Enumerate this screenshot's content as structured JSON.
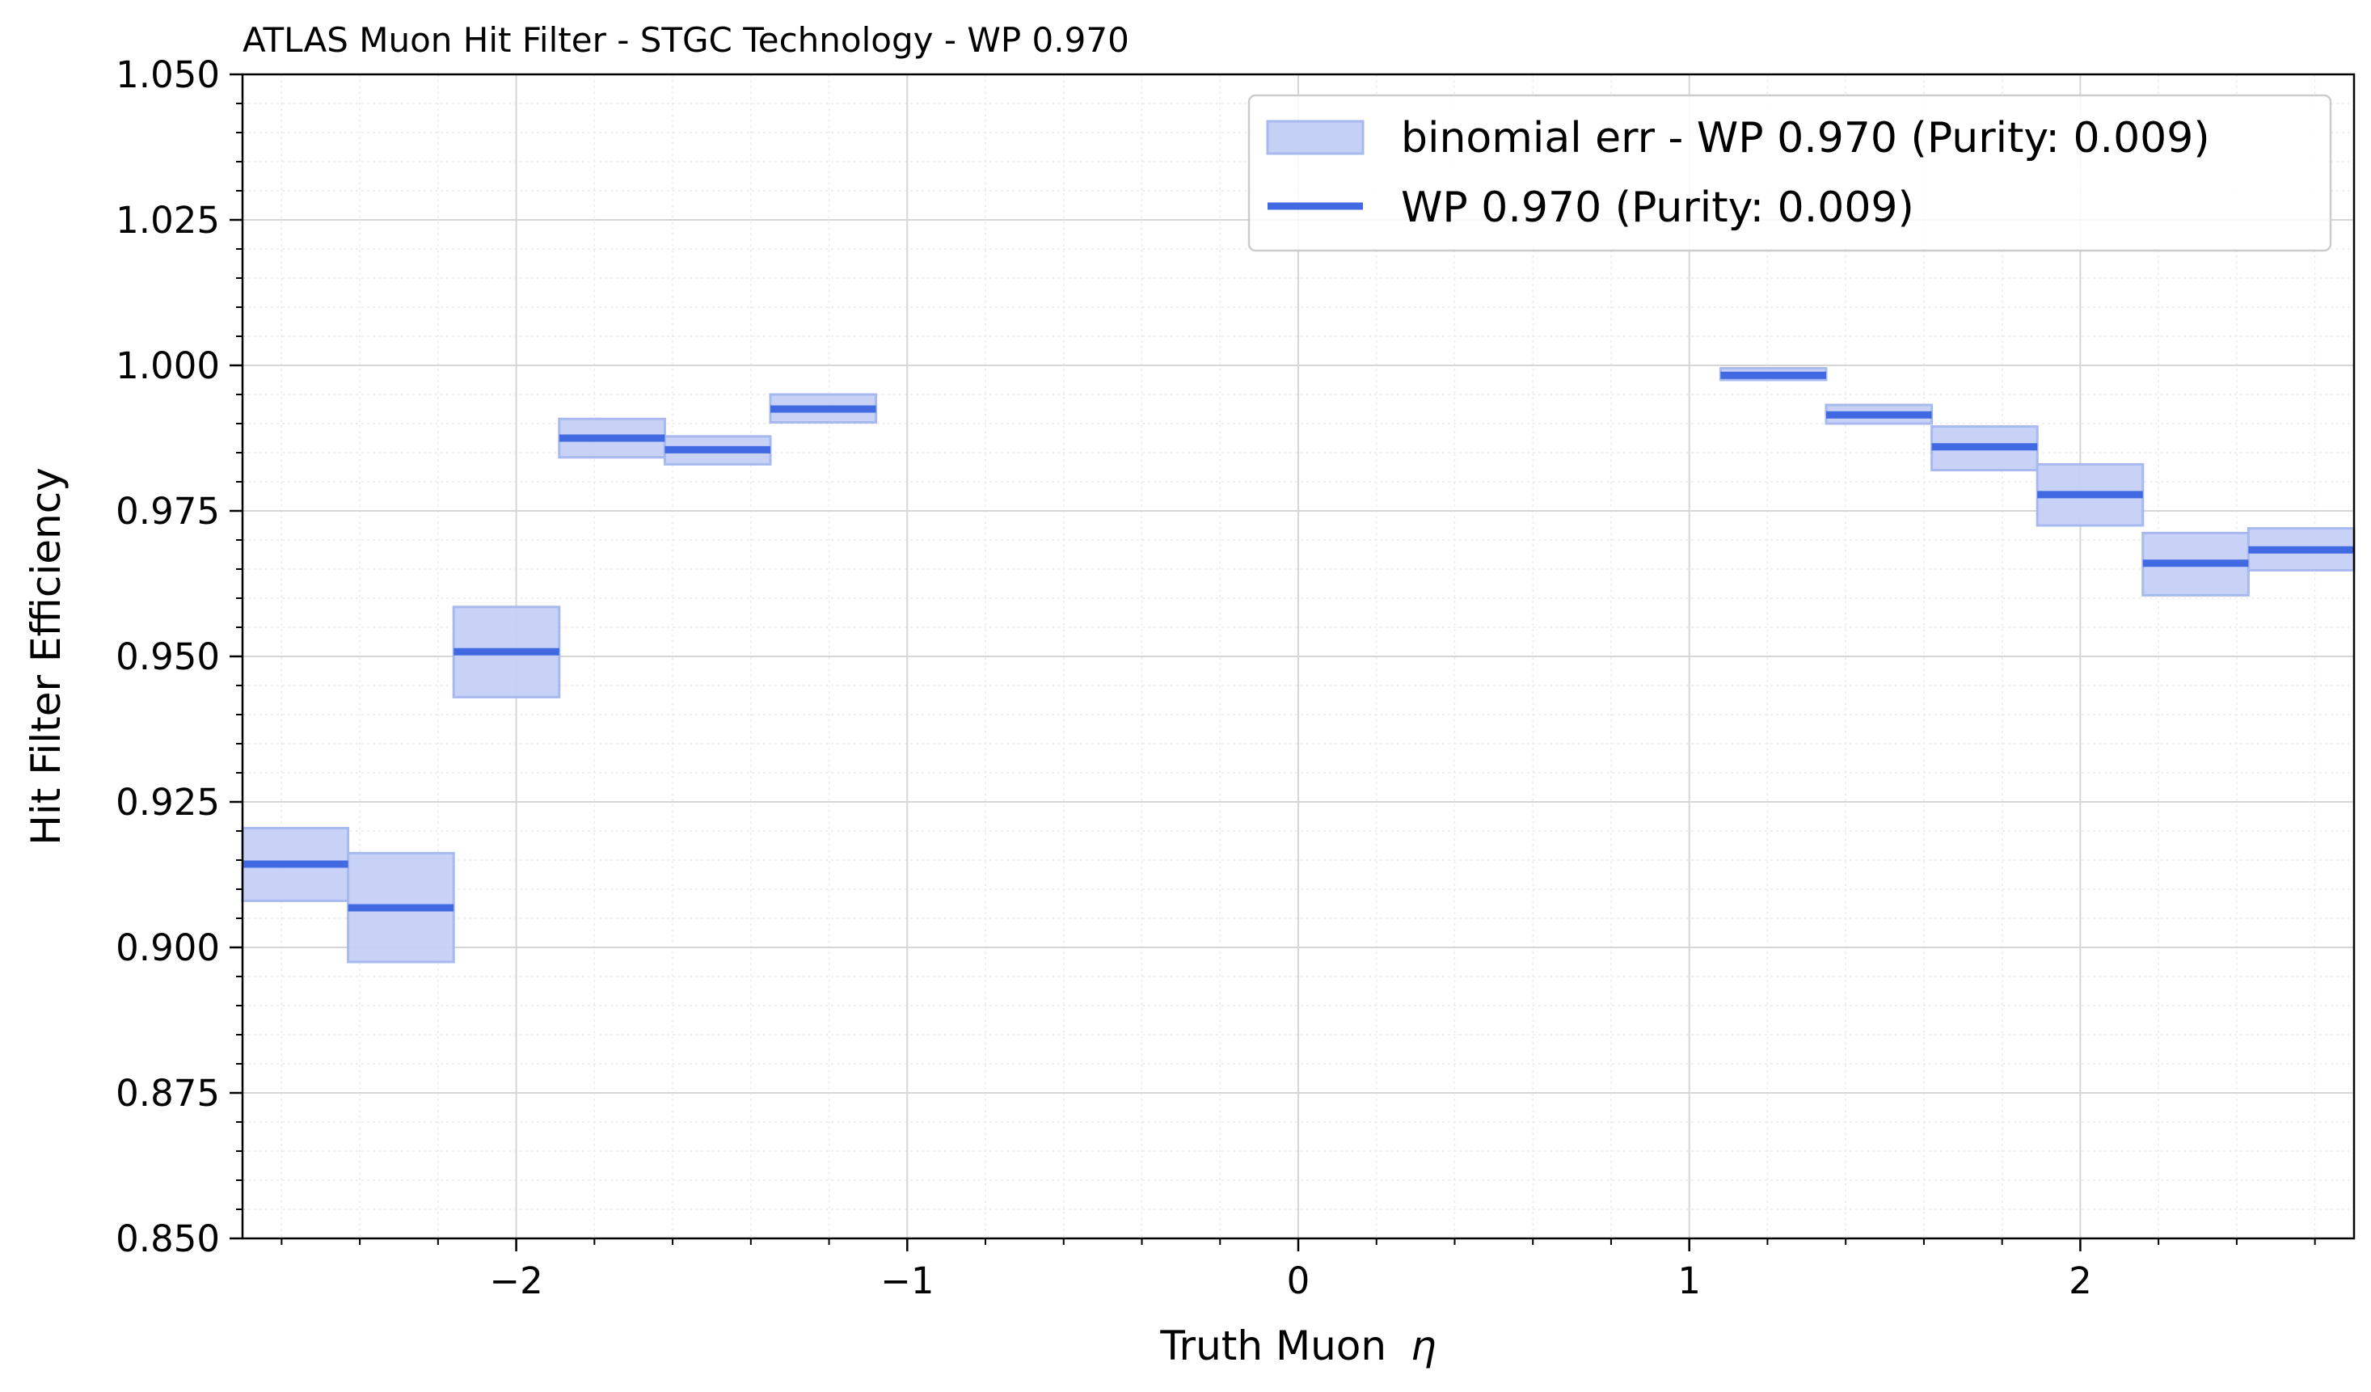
{
  "chart_data": {
    "type": "step-errorbar",
    "title": "ATLAS Muon Hit Filter - STGC Technology - WP 0.970",
    "xlabel": "Truth Muon",
    "xlabel_symbol": "η",
    "ylabel": "Hit Filter Efficiency",
    "xlim": [
      -2.7,
      2.7
    ],
    "ylim": [
      0.85,
      1.05
    ],
    "x_ticks": [
      -2,
      -1,
      0,
      1,
      2
    ],
    "x_tick_labels": [
      "−2",
      "−1",
      "0",
      "1",
      "2"
    ],
    "y_ticks": [
      0.85,
      0.875,
      0.9,
      0.925,
      0.95,
      0.975,
      1.0,
      1.025,
      1.05
    ],
    "y_tick_labels": [
      "0.850",
      "0.875",
      "0.900",
      "0.925",
      "0.950",
      "0.975",
      "1.000",
      "1.025",
      "1.050"
    ],
    "grid": true,
    "minor_grid": true,
    "legend_position": "top-right",
    "legend": [
      {
        "label": "binomial err - WP 0.970 (Purity: 0.009)",
        "kind": "band"
      },
      {
        "label": "WP 0.970 (Purity: 0.009)",
        "kind": "line"
      }
    ],
    "colors": {
      "line": "#4169e1",
      "band_fill": "#c4d0f6",
      "band_edge": "#a7b9ee"
    },
    "bins": [
      {
        "x0": -2.7,
        "x1": -2.43,
        "y": 0.9143,
        "err_low": 0.908,
        "err_high": 0.9205
      },
      {
        "x0": -2.43,
        "x1": -2.16,
        "y": 0.9068,
        "err_low": 0.8975,
        "err_high": 0.9162
      },
      {
        "x0": -2.16,
        "x1": -1.89,
        "y": 0.9508,
        "err_low": 0.943,
        "err_high": 0.9585
      },
      {
        "x0": -1.89,
        "x1": -1.62,
        "y": 0.9875,
        "err_low": 0.9842,
        "err_high": 0.9908
      },
      {
        "x0": -1.62,
        "x1": -1.35,
        "y": 0.9855,
        "err_low": 0.983,
        "err_high": 0.9878
      },
      {
        "x0": -1.35,
        "x1": -1.08,
        "y": 0.9925,
        "err_low": 0.9902,
        "err_high": 0.995
      },
      {
        "x0": 1.08,
        "x1": 1.35,
        "y": 0.9983,
        "err_low": 0.9975,
        "err_high": 0.9995
      },
      {
        "x0": 1.35,
        "x1": 1.62,
        "y": 0.9915,
        "err_low": 0.99,
        "err_high": 0.9932
      },
      {
        "x0": 1.62,
        "x1": 1.89,
        "y": 0.986,
        "err_low": 0.982,
        "err_high": 0.9895
      },
      {
        "x0": 1.89,
        "x1": 2.16,
        "y": 0.9778,
        "err_low": 0.9725,
        "err_high": 0.983
      },
      {
        "x0": 2.16,
        "x1": 2.43,
        "y": 0.966,
        "err_low": 0.9605,
        "err_high": 0.9712
      },
      {
        "x0": 2.43,
        "x1": 2.7,
        "y": 0.9683,
        "err_low": 0.9648,
        "err_high": 0.972
      }
    ]
  }
}
